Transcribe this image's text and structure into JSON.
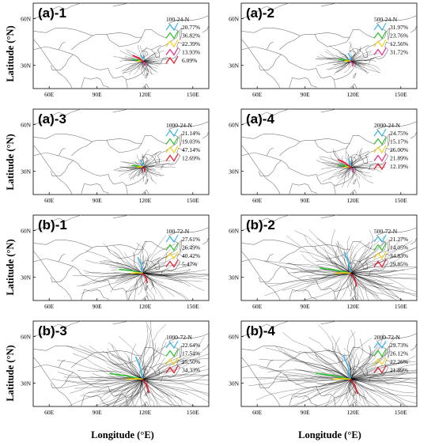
{
  "chart_data": {
    "type": "trajectory-map-grid",
    "xlabel": "Longitude (°E)",
    "ylabel": "Latitude (°N)",
    "x_ticks": [
      "60E",
      "90E",
      "120E",
      "150E"
    ],
    "y_ticks": [
      "30N",
      "60N"
    ],
    "cluster_colors": [
      "#3fb6e8",
      "#2fc02f",
      "#f2d21a",
      "#e0298c",
      "#e8142a"
    ],
    "panels": [
      {
        "label": "(a)-1",
        "legend_title": "100-24-N",
        "values": [
          "20.77%",
          "36.82%",
          "22.39%",
          "13.93%",
          "6.09%"
        ],
        "colors": [
          "#3fb6e8",
          "#2fc02f",
          "#f2d21a",
          "#e0298c",
          "#e8142a"
        ],
        "spread": 1
      },
      {
        "label": "(a)-2",
        "legend_title": "500-24-N",
        "values": [
          "31.97%",
          "23.76%",
          "12.56%",
          "31.72%"
        ],
        "colors": [
          "#3fb6e8",
          "#2fc02f",
          "#f2d21a",
          "#e0298c"
        ],
        "spread": 1.2
      },
      {
        "label": "(a)-3",
        "legend_title": "1000-24-N",
        "values": [
          "21.14%",
          "19.03%",
          "47.14%",
          "12.69%"
        ],
        "colors": [
          "#3fb6e8",
          "#2fc02f",
          "#f2d21a",
          "#e8142a"
        ],
        "spread": 1.1
      },
      {
        "label": "(a)-4",
        "legend_title": "2000-24-N",
        "values": [
          "24.75%",
          "15.17%",
          "26.00%",
          "21.89%",
          "12.19%"
        ],
        "colors": [
          "#3fb6e8",
          "#2fc02f",
          "#f2d21a",
          "#e0298c",
          "#e8142a"
        ],
        "spread": 1.3
      },
      {
        "label": "(b)-1",
        "legend_title": "100-72-N",
        "values": [
          "27.61%",
          "26.49%",
          "40.42%",
          "5.47%"
        ],
        "colors": [
          "#3fb6e8",
          "#2fc02f",
          "#f2d21a",
          "#e8142a"
        ],
        "spread": 2.4
      },
      {
        "label": "(b)-2",
        "legend_title": "500-72-N",
        "values": [
          "21.27%",
          "14.05%",
          "34.83%",
          "29.85%"
        ],
        "colors": [
          "#3fb6e8",
          "#2fc02f",
          "#f2d21a",
          "#e8142a"
        ],
        "spread": 3.2
      },
      {
        "label": "(b)-3",
        "legend_title": "1000-72-N",
        "values": [
          "22.64%",
          "17.54%",
          "25.50%",
          "34.33%"
        ],
        "colors": [
          "#3fb6e8",
          "#2fc02f",
          "#f2d21a",
          "#e8142a"
        ],
        "spread": 3.4
      },
      {
        "label": "(b)-4",
        "legend_title": "2000-72-N",
        "values": [
          "29.73%",
          "26.12%",
          "22.26%",
          "21.89%"
        ],
        "colors": [
          "#3fb6e8",
          "#2fc02f",
          "#f2d21a",
          "#e8142a"
        ],
        "spread": 3.6
      }
    ]
  }
}
